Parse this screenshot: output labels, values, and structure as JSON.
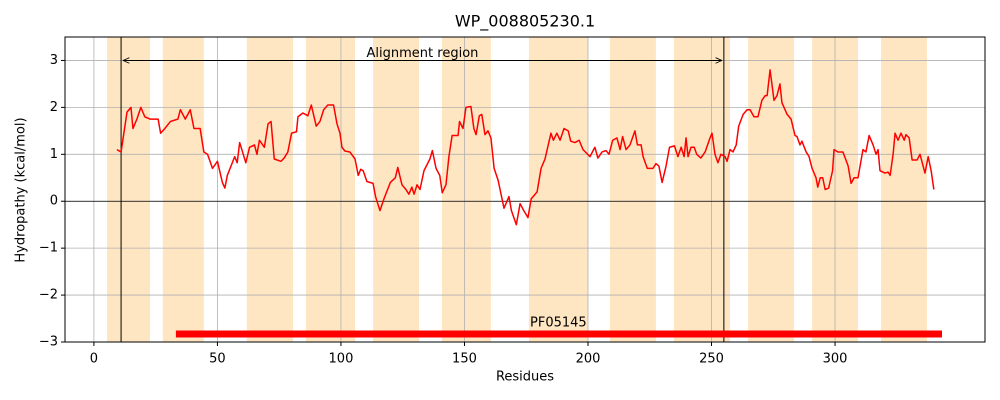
{
  "chart_data": {
    "type": "line",
    "title": "WP_008805230.1",
    "xlabel": "Residues",
    "ylabel": "Hydropathy (kcal/mol)",
    "xlim": [
      -11.7,
      360.7
    ],
    "ylim": [
      -3,
      3.5
    ],
    "xticks": [
      0,
      50,
      100,
      150,
      200,
      250,
      300
    ],
    "yticks": [
      {
        "value": -3,
        "label": "−3"
      },
      {
        "value": -2,
        "label": "−2"
      },
      {
        "value": -1,
        "label": "−1"
      },
      0,
      1,
      2,
      3
    ],
    "grid": true,
    "color": "#ff0000",
    "region_color": "#ffe6c2",
    "regions": [
      [
        5.3,
        22.7
      ],
      [
        27.9,
        44.5
      ],
      [
        61.9,
        80.6
      ],
      [
        85.8,
        105.7
      ],
      [
        113,
        131.6
      ],
      [
        140.9,
        160.7
      ],
      [
        176.1,
        200
      ],
      [
        208.9,
        227.5
      ],
      [
        234.8,
        257.5
      ],
      [
        264.8,
        283.4
      ],
      [
        290.7,
        309.3
      ],
      [
        318.6,
        337.2
      ]
    ],
    "vlines": [
      11,
      255
    ],
    "annotation": {
      "text": "Alignment region",
      "x": 133,
      "y": 3.15,
      "arrow_y": 3
    },
    "domain": {
      "label": "PF05145",
      "start": 33.2,
      "end": 343.3,
      "y": -2.83,
      "label_y": -2.6,
      "label_x": 188
    },
    "x": [
      9.3,
      11,
      13.4,
      15,
      15.8,
      17.4,
      19,
      20.6,
      22.7,
      26,
      27,
      28.7,
      31,
      34,
      35,
      37,
      39,
      40.5,
      43,
      44.5,
      46,
      48,
      50,
      52,
      53,
      54,
      57,
      58,
      59,
      61.5,
      63,
      65,
      66,
      67,
      69,
      70.5,
      71.7,
      73,
      75.7,
      77,
      78.5,
      80,
      82,
      82.6,
      84.6,
      86.6,
      88,
      90,
      91.5,
      93,
      94.7,
      97,
      98.4,
      99.6,
      100.4,
      101.6,
      103.6,
      105.7,
      107,
      108,
      109,
      110.5,
      113,
      114,
      115.8,
      117.4,
      120,
      122,
      123,
      124.7,
      126.3,
      127.5,
      128.7,
      129.6,
      130.8,
      132,
      133.6,
      136,
      137,
      138.5,
      140,
      141,
      142.5,
      143.7,
      145,
      147.4,
      148,
      149.4,
      150.6,
      152.6,
      153.8,
      154.7,
      156,
      157,
      158.3,
      159.5,
      160.7,
      162,
      163.6,
      164.4,
      166,
      168,
      169,
      171,
      172.5,
      174,
      175.7,
      177,
      179.4,
      181,
      182.6,
      185,
      186,
      187.4,
      188.7,
      190.3,
      192,
      193,
      194.7,
      196.4,
      198,
      200.8,
      202.8,
      204,
      205.7,
      207.3,
      208.5,
      210,
      211.7,
      213,
      214,
      215.4,
      217,
      219,
      220,
      221.5,
      222.3,
      224,
      226.3,
      227.5,
      228.7,
      230,
      231.6,
      233,
      235,
      236.4,
      237.7,
      238.9,
      239.7,
      240.5,
      241.7,
      243,
      244,
      245.7,
      247.4,
      249.4,
      250.2,
      251.4,
      252.6,
      253.8,
      255.5,
      256.3,
      257.5,
      258.7,
      260,
      261,
      262.8,
      264.4,
      265.6,
      267.2,
      268.8,
      270.4,
      271.7,
      272.5,
      273.7,
      275.3,
      276.5,
      277.7,
      278.5,
      280.6,
      282.2,
      283.8,
      284.6,
      285.8,
      286.6,
      288.3,
      289.5,
      290.7,
      292.3,
      293,
      294,
      295,
      296,
      297.4,
      299,
      299.6,
      301.2,
      303.2,
      305.3,
      306.5,
      307.7,
      309.3,
      311.3,
      312.5,
      313.8,
      315.4,
      316.6,
      317.4,
      318.2,
      320.2,
      321.5,
      322.3,
      323.5,
      324.3,
      325.5,
      326.7,
      328,
      328.7,
      330,
      331.2,
      333.2,
      334.4,
      336.4,
      337.7,
      338.9,
      340
    ],
    "values": [
      1.1,
      1.05,
      1.9,
      2.0,
      1.55,
      1.75,
      2.0,
      1.8,
      1.75,
      1.75,
      1.45,
      1.55,
      1.7,
      1.75,
      1.95,
      1.75,
      1.95,
      1.55,
      1.55,
      1.05,
      1.0,
      0.7,
      0.85,
      0.4,
      0.28,
      0.55,
      0.95,
      0.82,
      1.25,
      0.82,
      1.15,
      1.2,
      1.0,
      1.3,
      1.15,
      1.65,
      1.7,
      0.9,
      0.85,
      0.92,
      1.05,
      1.45,
      1.48,
      1.8,
      1.88,
      1.82,
      2.05,
      1.6,
      1.7,
      1.95,
      2.05,
      2.05,
      1.65,
      1.45,
      1.15,
      1.07,
      1.05,
      0.9,
      0.55,
      0.68,
      0.65,
      0.42,
      0.38,
      0.1,
      -0.2,
      0.05,
      0.4,
      0.5,
      0.72,
      0.35,
      0.25,
      0.15,
      0.3,
      0.15,
      0.35,
      0.25,
      0.65,
      0.9,
      1.08,
      0.7,
      0.55,
      0.18,
      0.35,
      0.95,
      1.4,
      1.4,
      1.7,
      1.55,
      2.0,
      2.02,
      1.55,
      1.42,
      1.82,
      1.85,
      1.42,
      1.5,
      1.35,
      0.7,
      0.45,
      0.25,
      -0.15,
      0.1,
      -0.2,
      -0.5,
      -0.05,
      -0.2,
      -0.35,
      0.05,
      0.2,
      0.7,
      0.9,
      1.45,
      1.3,
      1.45,
      1.3,
      1.55,
      1.5,
      1.28,
      1.25,
      1.3,
      1.1,
      0.95,
      1.15,
      0.92,
      1.05,
      1.08,
      1.0,
      1.3,
      1.35,
      1.1,
      1.38,
      1.1,
      1.2,
      1.5,
      1.2,
      1.2,
      0.95,
      0.7,
      0.7,
      0.8,
      0.75,
      0.4,
      0.75,
      1.15,
      1.18,
      0.95,
      1.15,
      0.95,
      1.35,
      0.95,
      1.15,
      1.15,
      1.0,
      0.92,
      1.05,
      1.35,
      1.45,
      1.0,
      0.82,
      1.0,
      0.95,
      0.85,
      1.1,
      1.05,
      1.2,
      1.6,
      1.85,
      1.95,
      1.95,
      1.8,
      1.8,
      2.15,
      2.25,
      2.25,
      2.8,
      2.15,
      2.25,
      2.5,
      2.1,
      1.85,
      1.75,
      1.4,
      1.38,
      1.2,
      1.28,
      1.05,
      0.95,
      0.7,
      0.5,
      0.3,
      0.5,
      0.5,
      0.25,
      0.28,
      0.65,
      1.1,
      1.05,
      1.05,
      0.75,
      0.38,
      0.5,
      0.5,
      1.1,
      1.05,
      1.4,
      1.2,
      1.0,
      1.1,
      0.65,
      0.6,
      0.62,
      0.55,
      1.0,
      1.45,
      1.3,
      1.45,
      1.3,
      1.42,
      1.35,
      0.88,
      0.88,
      1.0,
      0.6,
      0.95,
      0.65,
      0.25
    ]
  }
}
